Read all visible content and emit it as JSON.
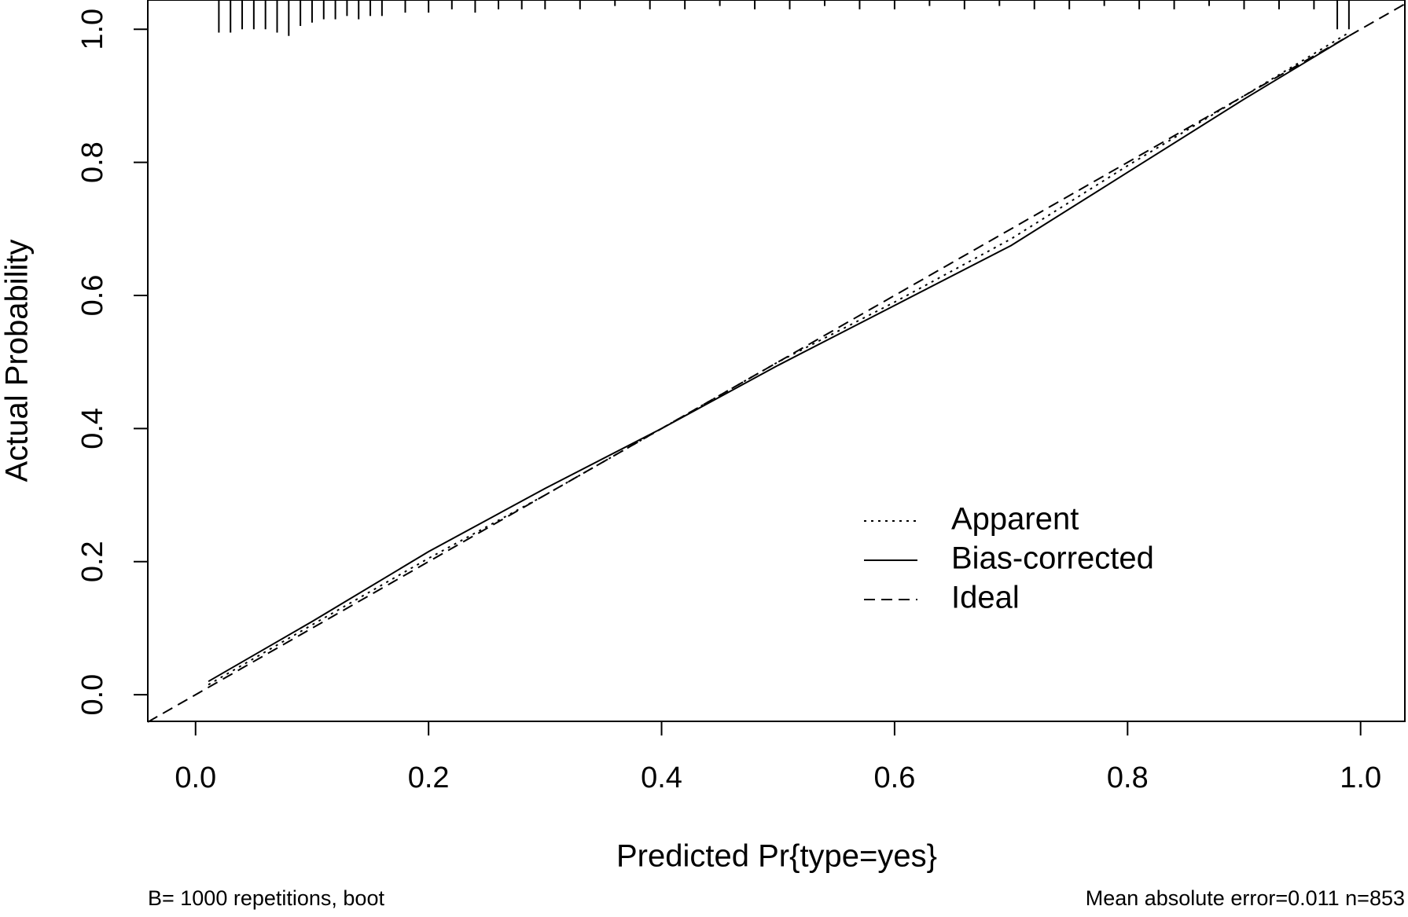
{
  "chart_data": {
    "type": "line",
    "xlabel": "Predicted Pr{type=yes}",
    "ylabel": "Actual Probability",
    "footnote_left": "B= 1000 repetitions, boot",
    "footnote_right": "Mean absolute error=0.011 n=853",
    "xlim": [
      -0.041,
      1.038
    ],
    "ylim": [
      -0.04,
      1.044
    ],
    "xticks": [
      {
        "value": 0,
        "label": "0.0"
      },
      0.2,
      0.4,
      0.6,
      0.8,
      {
        "value": 1,
        "label": "1.0"
      }
    ],
    "yticks": [
      {
        "value": 0,
        "label": "0.0"
      },
      0.2,
      0.4,
      0.6,
      0.8,
      {
        "value": 1,
        "label": "1.0"
      }
    ],
    "legend": "right",
    "series": [
      {
        "name": "Apparent",
        "color": "#000000",
        "linestyle": "dotted",
        "x": [
          0.011,
          0.1,
          0.2,
          0.3,
          0.4,
          0.5,
          0.6,
          0.7,
          0.8,
          0.9,
          0.99
        ],
        "values": [
          0.015,
          0.105,
          0.205,
          0.3,
          0.4,
          0.5,
          0.59,
          0.685,
          0.795,
          0.9,
          0.995
        ]
      },
      {
        "name": "Bias-corrected",
        "color": "#000000",
        "linestyle": "solid",
        "x": [
          0.011,
          0.1,
          0.2,
          0.3,
          0.4,
          0.5,
          0.6,
          0.7,
          0.8,
          0.9,
          0.99
        ],
        "values": [
          0.02,
          0.11,
          0.215,
          0.31,
          0.4,
          0.495,
          0.585,
          0.675,
          0.785,
          0.895,
          0.99
        ]
      },
      {
        "name": "Ideal",
        "color": "#000000",
        "linestyle": "dashed",
        "x": [
          -0.041,
          1.038
        ],
        "values": [
          -0.041,
          1.038
        ]
      }
    ],
    "rug": {
      "x": [
        0.02,
        0.03,
        0.04,
        0.05,
        0.06,
        0.07,
        0.08,
        0.09,
        0.1,
        0.11,
        0.12,
        0.13,
        0.14,
        0.15,
        0.16,
        0.18,
        0.2,
        0.22,
        0.24,
        0.26,
        0.28,
        0.3,
        0.33,
        0.36,
        0.39,
        0.42,
        0.45,
        0.48,
        0.51,
        0.54,
        0.57,
        0.6,
        0.63,
        0.66,
        0.69,
        0.72,
        0.75,
        0.78,
        0.81,
        0.84,
        0.87,
        0.9,
        0.93,
        0.96,
        0.98,
        0.99
      ],
      "values": [
        0.995,
        0.995,
        1.0,
        1.0,
        1.0,
        0.995,
        0.99,
        1.005,
        1.01,
        1.015,
        1.015,
        1.02,
        1.015,
        1.02,
        1.02,
        1.025,
        1.025,
        1.03,
        1.025,
        1.03,
        1.03,
        1.03,
        1.03,
        1.035,
        1.03,
        1.03,
        1.035,
        1.03,
        1.03,
        1.035,
        1.03,
        1.03,
        1.035,
        1.03,
        1.035,
        1.03,
        1.03,
        1.035,
        1.03,
        1.03,
        1.035,
        1.03,
        1.03,
        1.03,
        1.0,
        1.0
      ]
    }
  }
}
